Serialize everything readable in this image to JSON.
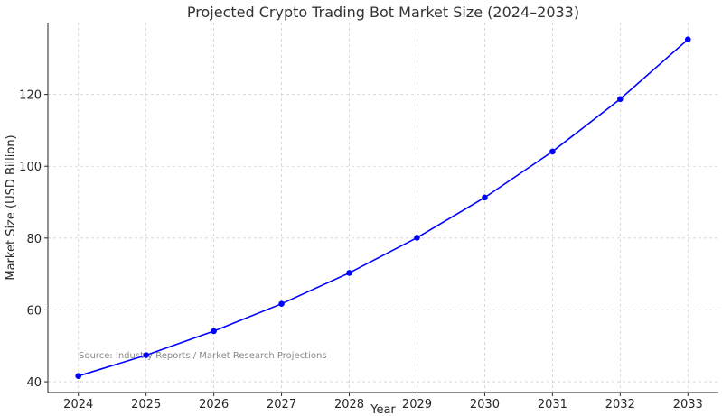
{
  "chart_data": {
    "type": "line",
    "title": "Projected Crypto Trading Bot Market Size (2024–2033)",
    "xlabel": "Year",
    "ylabel": "Market Size (USD Billion)",
    "categories": [
      "2024",
      "2025",
      "2026",
      "2027",
      "2028",
      "2029",
      "2030",
      "2031",
      "2032",
      "2033"
    ],
    "x": [
      2024,
      2025,
      2026,
      2027,
      2028,
      2029,
      2030,
      2031,
      2032,
      2033
    ],
    "series": [
      {
        "values": [
          41.6,
          47.4,
          54.1,
          61.7,
          70.3,
          80.1,
          91.3,
          104.1,
          118.7,
          135.3
        ],
        "color": "#0000ff",
        "marker": "circle"
      }
    ],
    "yticks": [
      40,
      60,
      80,
      100,
      120
    ],
    "ylim": [
      37,
      140
    ],
    "xlim": [
      2023.55,
      2033.45
    ],
    "grid": true,
    "annotation": "Source: Industry Reports / Market Research Projections"
  }
}
